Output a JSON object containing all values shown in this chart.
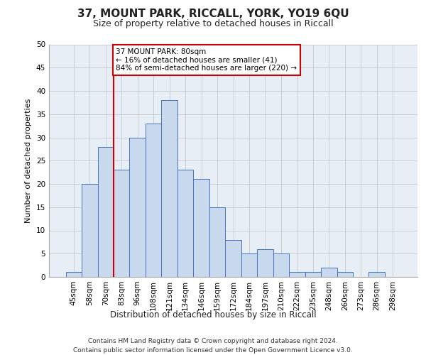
{
  "title": "37, MOUNT PARK, RICCALL, YORK, YO19 6QU",
  "subtitle": "Size of property relative to detached houses in Riccall",
  "xlabel": "Distribution of detached houses by size in Riccall",
  "ylabel": "Number of detached properties",
  "bar_labels": [
    "45sqm",
    "58sqm",
    "70sqm",
    "83sqm",
    "96sqm",
    "108sqm",
    "121sqm",
    "134sqm",
    "146sqm",
    "159sqm",
    "172sqm",
    "184sqm",
    "197sqm",
    "210sqm",
    "222sqm",
    "235sqm",
    "248sqm",
    "260sqm",
    "273sqm",
    "286sqm",
    "298sqm"
  ],
  "bar_values": [
    1,
    20,
    28,
    23,
    30,
    33,
    38,
    23,
    21,
    15,
    8,
    5,
    6,
    5,
    1,
    1,
    2,
    1,
    0,
    1,
    0
  ],
  "bar_color": "#c8d9ed",
  "bar_edge_color": "#4472c4",
  "vline_color": "#cc0000",
  "annotation_text": "37 MOUNT PARK: 80sqm\n← 16% of detached houses are smaller (41)\n84% of semi-detached houses are larger (220) →",
  "annotation_box_color": "#ffffff",
  "annotation_box_edge": "#cc0000",
  "ylim": [
    0,
    50
  ],
  "yticks": [
    0,
    5,
    10,
    15,
    20,
    25,
    30,
    35,
    40,
    45,
    50
  ],
  "grid_color": "#c8c8c8",
  "bg_color": "#e8eef5",
  "footer": "Contains HM Land Registry data © Crown copyright and database right 2024.\nContains public sector information licensed under the Open Government Licence v3.0.",
  "title_fontsize": 11,
  "subtitle_fontsize": 9,
  "ylabel_fontsize": 8,
  "xlabel_fontsize": 8.5,
  "tick_fontsize": 7.5,
  "footer_fontsize": 6.5
}
